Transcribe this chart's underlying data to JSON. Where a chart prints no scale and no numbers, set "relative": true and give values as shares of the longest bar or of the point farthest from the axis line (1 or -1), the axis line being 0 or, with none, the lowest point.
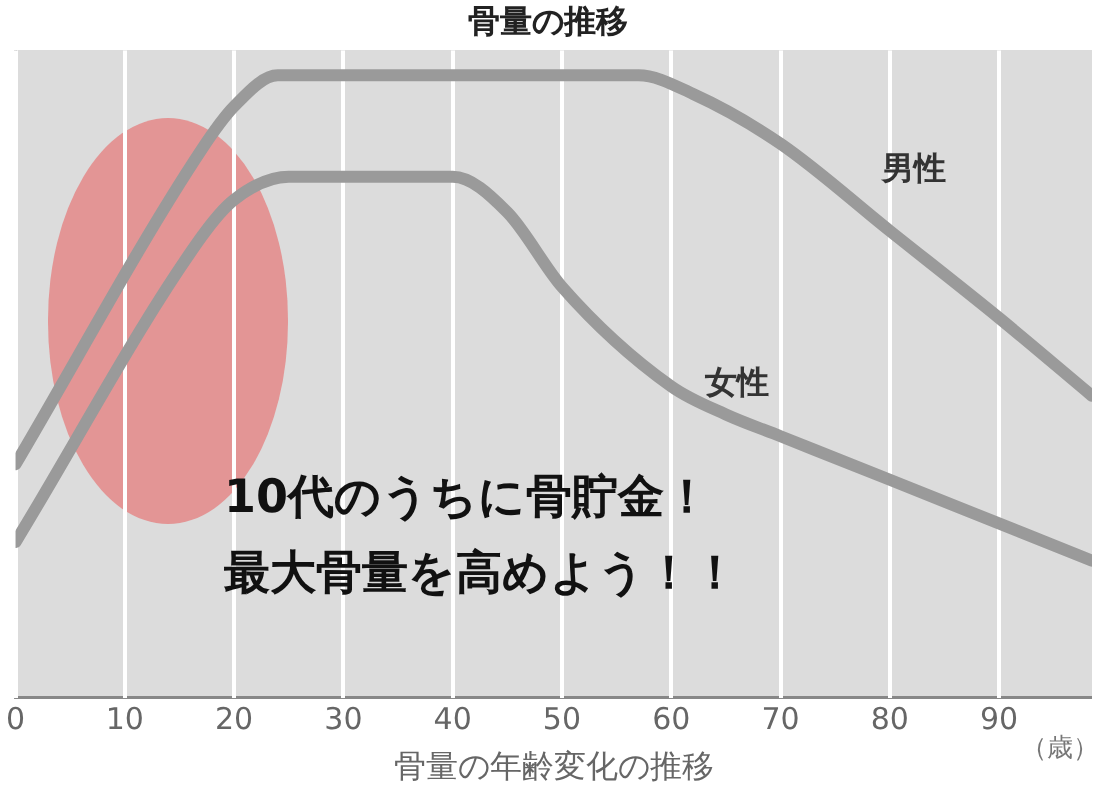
{
  "chart_data": {
    "type": "line",
    "title": "骨量の推移",
    "xlabel": "骨量の年齢変化の推移",
    "relative": true,
    "xlim": [
      0,
      98.5
    ],
    "xticks": [
      0,
      10,
      20,
      30,
      40,
      50,
      60,
      70,
      80,
      90
    ],
    "grid": "x",
    "legend": false,
    "marker": "none",
    "line_style": "solid",
    "series": [
      {
        "name": "男性",
        "color": "#9a9a9a",
        "x": [
          0,
          17,
          20,
          24,
          57,
          62,
          70,
          80,
          90,
          98.5
        ],
        "values": [
          0.375,
          0.88,
          0.95,
          1,
          1,
          0.97,
          0.89,
          0.75,
          0.61,
          0.485
        ]
      },
      {
        "name": "女性",
        "color": "#9a9a9a",
        "x": [
          0,
          17,
          20,
          25,
          40,
          45,
          50,
          60,
          65,
          70,
          80,
          98.5
        ],
        "values": [
          0.25,
          0.74,
          0.8,
          0.837,
          0.837,
          0.78,
          0.66,
          0.5,
          0.455,
          0.42,
          0.35,
          0.22
        ]
      }
    ],
    "annotations": [
      "10代のうちに骨貯金！",
      "最大骨量を高めよう！！",
      "（歳）"
    ]
  }
}
